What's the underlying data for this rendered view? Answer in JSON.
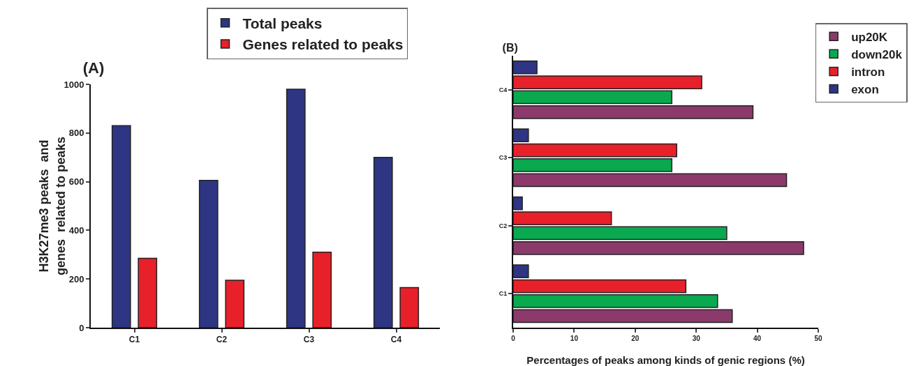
{
  "chart_data": [
    {
      "type": "bar",
      "title": "(A)",
      "ylabel": "H3K27me3 peaks  and\ngenes  related to peaks",
      "categories": [
        "C1",
        "C2",
        "C3",
        "C4"
      ],
      "series": [
        {
          "name": "Total peaks",
          "color": "#2e3582",
          "values": [
            830,
            605,
            980,
            700
          ]
        },
        {
          "name": "Genes related to peaks",
          "color": "#e8202a",
          "values": [
            285,
            195,
            310,
            165
          ]
        }
      ],
      "ylim": [
        0,
        1000
      ],
      "yticks": [
        0,
        200,
        400,
        600,
        800,
        1000
      ],
      "grid": false,
      "legend": "top"
    },
    {
      "type": "bar",
      "title": "(B)",
      "orientation": "horizontal",
      "xlabel": "Percentages of peaks among kinds of genic regions (%)",
      "categories": [
        "C4",
        "C3",
        "C2",
        "C1"
      ],
      "series": [
        {
          "name": "up20K",
          "color": "#8b3a6b",
          "values": [
            39.3,
            44.8,
            47.6,
            35.9
          ]
        },
        {
          "name": "down20k",
          "color": "#0aa84f",
          "values": [
            26.0,
            26.0,
            35.0,
            33.5
          ]
        },
        {
          "name": "intron",
          "color": "#e8202a",
          "values": [
            30.9,
            26.8,
            16.1,
            28.3
          ]
        },
        {
          "name": "exon",
          "color": "#2e3582",
          "values": [
            3.9,
            2.5,
            1.5,
            2.5
          ]
        }
      ],
      "xlim": [
        0,
        50
      ],
      "xticks": [
        0,
        10,
        20,
        30,
        40,
        50
      ],
      "grid": false,
      "legend": "top right"
    }
  ]
}
